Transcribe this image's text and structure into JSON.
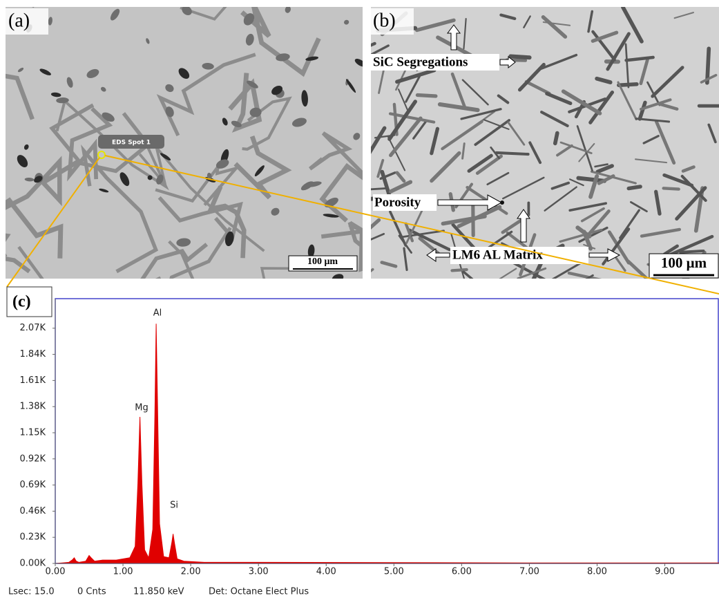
{
  "panel_a": {
    "label": "(a)",
    "spot_label": "EDS Spot 1",
    "scale_bar": "100 μm"
  },
  "panel_b": {
    "label": "(b)",
    "annotations": [
      "SiC Segregations",
      "Porosity",
      "LM6 AL Matrix"
    ],
    "scale_bar": "100 μm"
  },
  "chart_data": {
    "type": "area",
    "panel_label": "(c)",
    "x": [
      0,
      0.1,
      0.2,
      0.25,
      0.28,
      0.31,
      0.35,
      0.45,
      0.5,
      0.53,
      0.58,
      0.7,
      0.9,
      1.1,
      1.18,
      1.22,
      1.25,
      1.28,
      1.32,
      1.38,
      1.44,
      1.47,
      1.49,
      1.51,
      1.54,
      1.6,
      1.68,
      1.72,
      1.74,
      1.76,
      1.8,
      1.9,
      2.2,
      3,
      5,
      7,
      9.8
    ],
    "values": [
      0,
      0.005,
      0.01,
      0.03,
      0.05,
      0.02,
      0.01,
      0.02,
      0.07,
      0.05,
      0.02,
      0.03,
      0.03,
      0.05,
      0.15,
      0.7,
      1.29,
      0.7,
      0.12,
      0.05,
      0.3,
      1.3,
      2.11,
      1.4,
      0.35,
      0.06,
      0.05,
      0.18,
      0.26,
      0.18,
      0.04,
      0.02,
      0.01,
      0.01,
      0.008,
      0.005,
      0.004
    ],
    "color": "#e00000",
    "xlim": [
      0,
      9.8
    ],
    "ylim": [
      0,
      2.33
    ],
    "xticks": [
      {
        "value": 0,
        "label": "0.00"
      },
      {
        "value": 1,
        "label": "1.00"
      },
      {
        "value": 2,
        "label": "2.00"
      },
      {
        "value": 3,
        "label": "3.00"
      },
      {
        "value": 4,
        "label": "4.00"
      },
      {
        "value": 5,
        "label": "5.00"
      },
      {
        "value": 6,
        "label": "6.00"
      },
      {
        "value": 7,
        "label": "7.00"
      },
      {
        "value": 8,
        "label": "8.00"
      },
      {
        "value": 9,
        "label": "9.00"
      }
    ],
    "yticks": [
      {
        "value": 0,
        "label": "0.00K"
      },
      {
        "value": 0.23,
        "label": "0.23K"
      },
      {
        "value": 0.46,
        "label": "0.46K"
      },
      {
        "value": 0.69,
        "label": "0.69K"
      },
      {
        "value": 0.92,
        "label": "0.92K"
      },
      {
        "value": 1.15,
        "label": "1.15K"
      },
      {
        "value": 1.38,
        "label": "1.38K"
      },
      {
        "value": 1.61,
        "label": "1.61K"
      },
      {
        "value": 1.84,
        "label": "1.84K"
      },
      {
        "value": 2.07,
        "label": "2.07K"
      }
    ],
    "annotations": [
      "Mg",
      "Al",
      "Si"
    ],
    "grid": false
  },
  "status_bar": [
    "Lsec: 15.0",
    "0 Cnts",
    "11.850 keV",
    "Det: Octane Elect Plus"
  ]
}
